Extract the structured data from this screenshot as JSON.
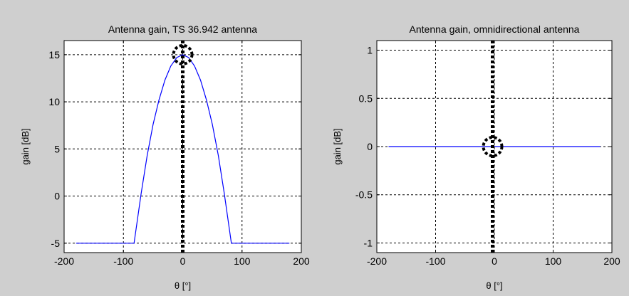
{
  "figure": {
    "background": "#cfcfcf"
  },
  "chart_data": [
    {
      "type": "line",
      "title": "Antenna gain, TS 36.942 antenna",
      "xlabel": "θ [°]",
      "ylabel": "gain [dB]",
      "xlim": [
        -200,
        200
      ],
      "ylim": [
        -6,
        16.5
      ],
      "xticks": [
        -200,
        -100,
        0,
        100,
        200
      ],
      "xtick_labels": [
        "-200",
        "-100",
        "0",
        "100",
        "200"
      ],
      "yticks": [
        -5,
        0,
        5,
        10,
        15
      ],
      "ytick_labels": [
        "-5",
        "0",
        "5",
        "10",
        "15"
      ],
      "grid": true,
      "series": [
        {
          "color": "#0000ff",
          "style": "solid",
          "x": [
            -180,
            -82,
            -70,
            -60,
            -50,
            -40,
            -30,
            -20,
            -10,
            0,
            10,
            20,
            30,
            40,
            50,
            60,
            70,
            82,
            180
          ],
          "y": [
            -5,
            -5,
            0.3,
            4.3,
            7.6,
            10.2,
            12.3,
            13.8,
            14.7,
            15,
            14.7,
            13.8,
            12.3,
            10.2,
            7.6,
            4.3,
            0.3,
            -5,
            -5
          ]
        },
        {
          "color": "#000000",
          "style": "dotted-thick",
          "x": [
            0,
            0
          ],
          "y": [
            -6,
            16.5
          ]
        }
      ],
      "annotations": [
        {
          "shape": "dotted-circle",
          "x": 0,
          "y": 15,
          "radius": 13
        }
      ]
    },
    {
      "type": "line",
      "title": "Antenna gain, omnidirectional antenna",
      "xlabel": "θ [°]",
      "ylabel": "gain [dB]",
      "xlim": [
        -200,
        200
      ],
      "ylim": [
        -1.1,
        1.1
      ],
      "xticks": [
        -200,
        -100,
        0,
        100,
        200
      ],
      "xtick_labels": [
        "-200",
        "-100",
        "0",
        "100",
        "200"
      ],
      "yticks": [
        -1,
        -0.5,
        0,
        0.5,
        1
      ],
      "ytick_labels": [
        "-1",
        "-0.5",
        "0",
        "0.5",
        "1"
      ],
      "grid": true,
      "series": [
        {
          "color": "#0000ff",
          "style": "solid",
          "x": [
            -180,
            180
          ],
          "y": [
            0,
            0
          ]
        },
        {
          "color": "#000000",
          "style": "dotted-thick",
          "x": [
            -3,
            -3
          ],
          "y": [
            -1.1,
            1.1
          ]
        }
      ],
      "annotations": [
        {
          "shape": "dotted-circle",
          "x": -3,
          "y": 0,
          "radius": 13
        }
      ]
    }
  ]
}
